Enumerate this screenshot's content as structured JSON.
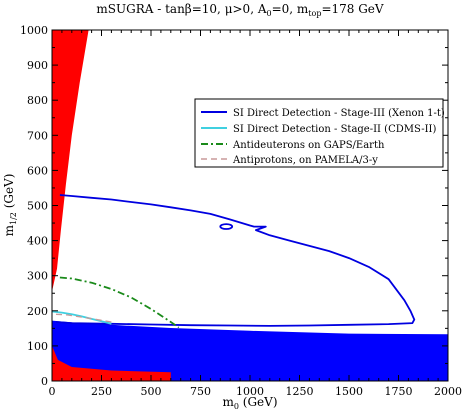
{
  "chart_data": {
    "type": "line",
    "title": {
      "prefix": "mSUGRA - tan",
      "beta": "β",
      "mid1": "=10, ",
      "mu": "μ",
      "mid2": ">0, A",
      "a_sub": "0",
      "mid3": "=0, m",
      "top_sub": "top",
      "suffix": "=178 GeV"
    },
    "xlabel": {
      "main": "m",
      "sub": "0",
      "rest": " (GeV)"
    },
    "ylabel": {
      "main": "m",
      "sub": "1/2",
      "rest": " (GeV)"
    },
    "xlim": [
      0,
      2000
    ],
    "ylim": [
      0,
      1000
    ],
    "x_ticks": [
      0,
      250,
      500,
      750,
      1000,
      1250,
      1500,
      1750,
      2000
    ],
    "x_tick_labels": [
      "0",
      "250",
      "500",
      "750",
      "1000",
      "1250",
      "1500",
      "1750",
      "2000"
    ],
    "y_ticks": [
      0,
      100,
      200,
      300,
      400,
      500,
      600,
      700,
      800,
      900,
      1000
    ],
    "y_tick_labels": [
      "0",
      "100",
      "200",
      "300",
      "400",
      "500",
      "600",
      "700",
      "800",
      "900",
      "1000"
    ],
    "colors": {
      "excluded_red": "#ff0000",
      "lep_blue": "#0000ff",
      "stage3": "#0000e0",
      "stage2": "#40d0e0",
      "antideuterons": "#1a8a1a",
      "antiprotons": "#c89a9a"
    },
    "regions": [
      {
        "id": "stau-lsp-excluded",
        "color": "#ff0000",
        "points": [
          [
            0,
            255
          ],
          [
            0,
            1000
          ],
          [
            185,
            1000
          ],
          [
            140,
            850
          ],
          [
            100,
            700
          ],
          [
            70,
            560
          ],
          [
            45,
            430
          ],
          [
            25,
            320
          ]
        ]
      },
      {
        "id": "lep-excluded",
        "color": "#0000ff",
        "points": [
          [
            0,
            0
          ],
          [
            2000,
            0
          ],
          [
            2000,
            133
          ],
          [
            1500,
            135
          ],
          [
            1000,
            143
          ],
          [
            600,
            151
          ],
          [
            300,
            160
          ],
          [
            100,
            167
          ],
          [
            0,
            172
          ]
        ]
      },
      {
        "id": "small-red-corner",
        "color": "#ff0000",
        "points": [
          [
            0,
            0
          ],
          [
            0,
            100
          ],
          [
            30,
            60
          ],
          [
            100,
            40
          ],
          [
            300,
            30
          ],
          [
            600,
            25
          ],
          [
            600,
            0
          ]
        ]
      }
    ],
    "series": [
      {
        "name": "SI Direct Detection - Stage-III (Xenon 1-t)",
        "style": "solid",
        "color": "#0000e0",
        "x": [
          40,
          100,
          200,
          300,
          400,
          500,
          600,
          700,
          800,
          900,
          1000,
          1020,
          1080,
          1030,
          1100,
          1200,
          1300,
          1400,
          1500,
          1600,
          1700,
          1780,
          1810,
          1830,
          1820,
          1700,
          1500,
          1300,
          1100,
          900,
          700,
          500,
          300,
          100,
          20
        ],
        "y": [
          530,
          527,
          522,
          517,
          510,
          503,
          495,
          486,
          476,
          460,
          443,
          440,
          440,
          430,
          415,
          400,
          385,
          370,
          350,
          325,
          290,
          230,
          200,
          175,
          165,
          162,
          160,
          158,
          157,
          158,
          159,
          161,
          163,
          165,
          168
        ]
      },
      {
        "name": "SI Direct Detection - Stage-II (CDMS-II)",
        "style": "solid",
        "color": "#40d0e0",
        "x": [
          0,
          50,
          100,
          150,
          200,
          250,
          300
        ],
        "y": [
          198,
          195,
          190,
          184,
          177,
          170,
          163
        ]
      },
      {
        "name": "Antideuterons on GAPS/Earth",
        "style": "dashdot",
        "color": "#1a8a1a",
        "x": [
          40,
          100,
          200,
          300,
          400,
          500,
          600,
          640
        ],
        "y": [
          295,
          292,
          280,
          262,
          238,
          205,
          168,
          152
        ]
      },
      {
        "name": "Antiprotons, on PAMELA/3-y",
        "style": "dashed",
        "color": "#c89a9a",
        "x": [
          20,
          80,
          150,
          230,
          300
        ],
        "y": [
          190,
          188,
          182,
          175,
          168
        ]
      }
    ],
    "island": {
      "x": 880,
      "y": 440,
      "rx": 30,
      "ry": 7
    },
    "legend": {
      "placement": "upper-right",
      "entries": [
        {
          "label": "SI Direct Detection - Stage-III (Xenon 1-t)",
          "color": "#0000e0",
          "style": "solid"
        },
        {
          "label": "SI Direct Detection - Stage-II (CDMS-II)",
          "color": "#40d0e0",
          "style": "solid"
        },
        {
          "label": "Antideuterons on GAPS/Earth",
          "color": "#1a8a1a",
          "style": "dashdot"
        },
        {
          "label": "Antiprotons, on PAMELA/3-y",
          "color": "#c89a9a",
          "style": "dashed"
        }
      ]
    },
    "grid": false
  }
}
